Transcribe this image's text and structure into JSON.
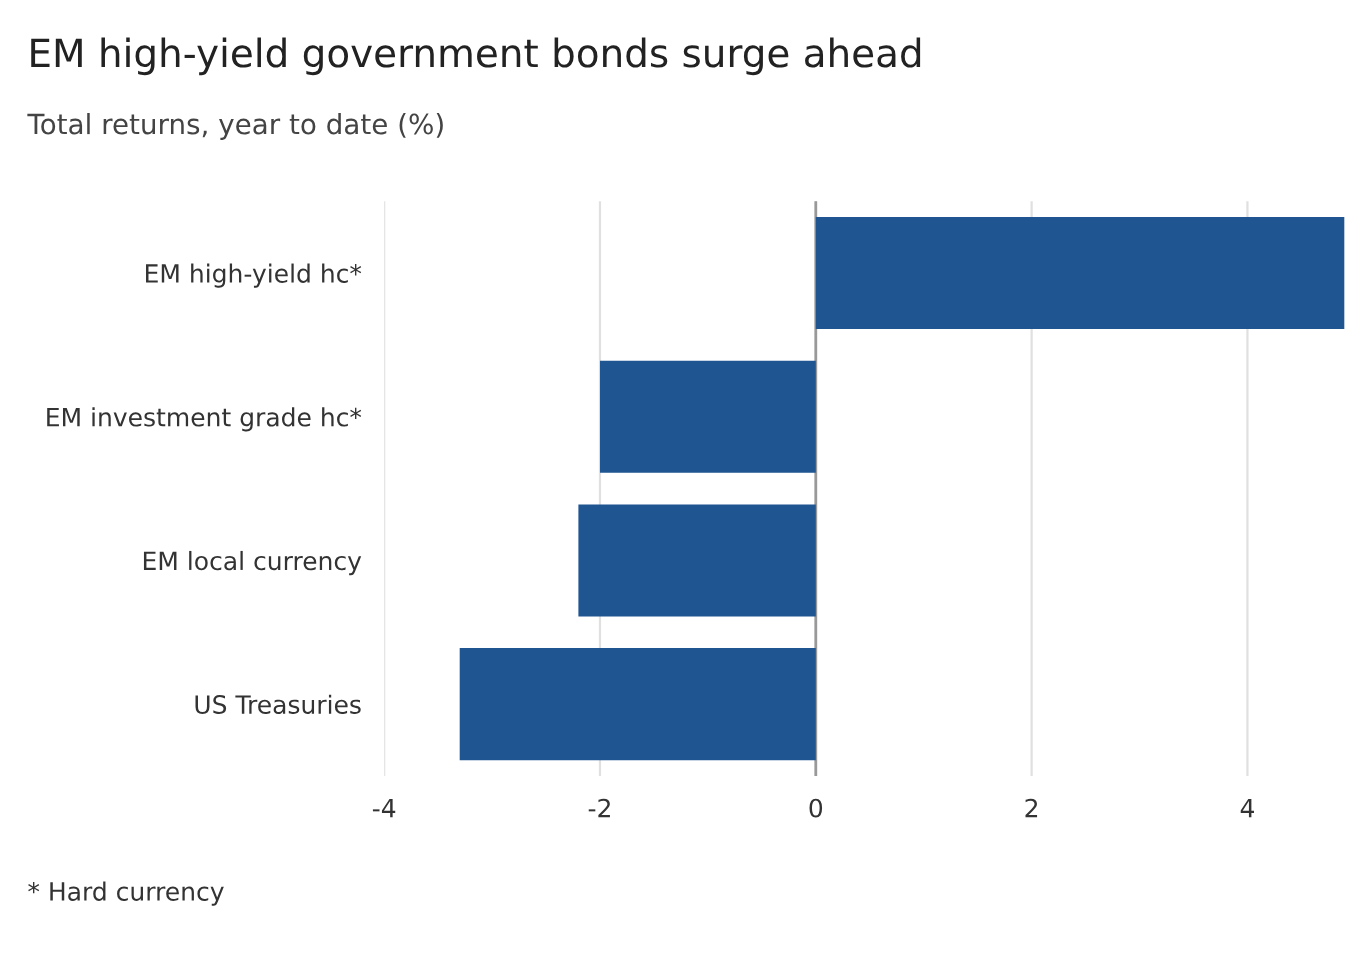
{
  "chart_data": {
    "type": "bar",
    "orientation": "horizontal",
    "title": "EM high-yield government bonds surge ahead",
    "subtitle": "Total returns, year to date (%)",
    "categories": [
      "EM high-yield hc*",
      "EM investment grade hc*",
      "EM local currency",
      "US Treasuries"
    ],
    "values": [
      4.9,
      -2.0,
      -2.2,
      -3.3
    ],
    "color": "#1f5591",
    "xlim": [
      -4,
      4.9
    ],
    "xticks": [
      -4,
      -2,
      0,
      2,
      4
    ],
    "grid": "x",
    "annotations": [
      "* Hard currency"
    ]
  }
}
